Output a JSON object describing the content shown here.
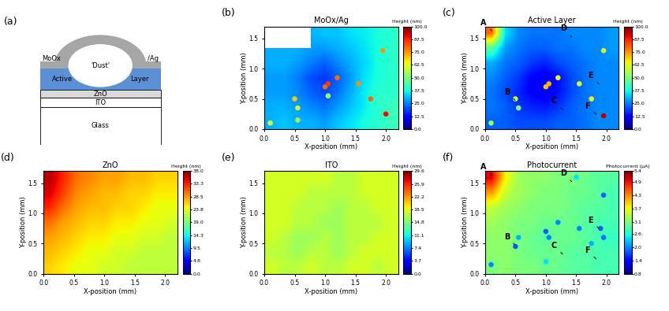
{
  "schematic": {
    "panel_label": "(a)",
    "layers": {
      "top_left": "MoOx",
      "top_right": "/Ag",
      "active_left": "Active",
      "active_right": "Layer",
      "dust": "'Dust'",
      "znO": "ZnO",
      "ito": "ITO",
      "glass": "Glass"
    }
  },
  "chart_data": [
    {
      "type": "heatmap",
      "panel_label": "(b)",
      "title": "MoOx/Ag",
      "x_label": "X-position (mm)",
      "y_label": "Y-position (mm)",
      "xlim": [
        0,
        2.2
      ],
      "ylim": [
        0,
        1.7
      ],
      "xticks": [
        0.0,
        0.5,
        1.0,
        1.5,
        2.0
      ],
      "yticks": [
        0.0,
        0.5,
        1.0,
        1.5
      ],
      "colorbar_label": "Height (nm)",
      "colorbar_range": [
        0.0,
        100.0
      ],
      "colorbar_ticks": [
        0.0,
        12.5,
        25.0,
        37.5,
        50.0,
        62.5,
        75.0,
        87.5,
        100.0
      ],
      "cells": [
        [
          30,
          32,
          30,
          30,
          28,
          32,
          35,
          38,
          40,
          42
        ],
        [
          30,
          30,
          28,
          26,
          24,
          28,
          32,
          36,
          40,
          42
        ],
        [
          28,
          28,
          26,
          22,
          20,
          24,
          30,
          36,
          40,
          40
        ],
        [
          28,
          28,
          25,
          20,
          18,
          22,
          28,
          35,
          38,
          40
        ],
        [
          30,
          30,
          28,
          25,
          22,
          26,
          30,
          34,
          38,
          40
        ],
        [
          30,
          30,
          30,
          28,
          28,
          30,
          32,
          35,
          38,
          40
        ],
        [
          null,
          null,
          null,
          30,
          32,
          32,
          35,
          36,
          38,
          40
        ]
      ],
      "spots": [
        {
          "x": 0.1,
          "y": 0.1,
          "value": 62
        },
        {
          "x": 0.5,
          "y": 0.5,
          "value": 70
        },
        {
          "x": 0.55,
          "y": 0.35,
          "value": 60
        },
        {
          "x": 0.55,
          "y": 0.15,
          "value": 55
        },
        {
          "x": 1.0,
          "y": 0.7,
          "value": 80
        },
        {
          "x": 1.05,
          "y": 0.75,
          "value": 85
        },
        {
          "x": 1.2,
          "y": 0.85,
          "value": 80
        },
        {
          "x": 1.05,
          "y": 0.55,
          "value": 55
        },
        {
          "x": 1.55,
          "y": 0.75,
          "value": 75
        },
        {
          "x": 1.75,
          "y": 0.5,
          "value": 80
        },
        {
          "x": 1.95,
          "y": 1.3,
          "value": 75
        },
        {
          "x": 2.0,
          "y": 0.25,
          "value": 90
        }
      ]
    },
    {
      "type": "heatmap",
      "panel_label": "(c)",
      "title": "Active Layer",
      "x_label": "X-position (mm)",
      "y_label": "Y-position (mm)",
      "xlim": [
        0,
        2.2
      ],
      "ylim": [
        0,
        1.7
      ],
      "xticks": [
        0.0,
        0.5,
        1.0,
        1.5,
        2.0
      ],
      "yticks": [
        0.0,
        0.5,
        1.0,
        1.5
      ],
      "colorbar_label": "Height (nm)",
      "colorbar_range": [
        0.0,
        100.0
      ],
      "colorbar_ticks": [
        0.0,
        12.5,
        25.0,
        37.5,
        50.0,
        62.5,
        75.0,
        87.5,
        100.0
      ],
      "cells": [
        [
          22,
          22,
          20,
          20,
          20,
          22,
          22,
          24,
          26,
          26
        ],
        [
          24,
          22,
          18,
          16,
          15,
          18,
          22,
          24,
          26,
          26
        ],
        [
          24,
          20,
          16,
          12,
          10,
          14,
          20,
          24,
          26,
          26
        ],
        [
          26,
          22,
          18,
          12,
          10,
          14,
          20,
          24,
          26,
          26
        ],
        [
          30,
          24,
          22,
          18,
          16,
          20,
          22,
          24,
          26,
          26
        ],
        [
          45,
          28,
          24,
          22,
          22,
          24,
          24,
          26,
          26,
          28
        ],
        [
          80,
          35,
          26,
          24,
          24,
          24,
          26,
          26,
          26,
          28
        ]
      ],
      "spots": [
        {
          "x": 0.1,
          "y": 0.1,
          "value": 55
        },
        {
          "x": 0.5,
          "y": 0.5,
          "value": 60
        },
        {
          "x": 0.55,
          "y": 0.35,
          "value": 50
        },
        {
          "x": 1.0,
          "y": 0.7,
          "value": 70
        },
        {
          "x": 1.05,
          "y": 0.75,
          "value": 72
        },
        {
          "x": 1.2,
          "y": 0.85,
          "value": 65
        },
        {
          "x": 1.55,
          "y": 0.75,
          "value": 62
        },
        {
          "x": 1.75,
          "y": 0.5,
          "value": 65
        },
        {
          "x": 1.95,
          "y": 1.3,
          "value": 62
        },
        {
          "x": 1.95,
          "y": 0.22,
          "value": 95
        }
      ],
      "annotations": [
        {
          "text": "A",
          "x": 0.14,
          "y": 1.6
        },
        {
          "text": "B",
          "x": 0.52,
          "y": 0.45
        },
        {
          "text": "C",
          "x": 1.3,
          "y": 0.3
        },
        {
          "text": "D",
          "x": 1.45,
          "y": 1.5
        },
        {
          "text": "E",
          "x": 1.9,
          "y": 0.72
        },
        {
          "text": "F",
          "x": 1.85,
          "y": 0.22
        }
      ]
    },
    {
      "type": "heatmap",
      "panel_label": "(d)",
      "title": "ZnO",
      "x_label": "X-position (mm)",
      "y_label": "Y-position (mm)",
      "xlim": [
        0,
        2.2
      ],
      "ylim": [
        0,
        1.7
      ],
      "xticks": [
        0.0,
        0.5,
        1.0,
        1.5,
        2.0
      ],
      "yticks": [
        0.0,
        0.5,
        1.0,
        1.5
      ],
      "colorbar_label": "Height (nm)",
      "colorbar_range": [
        0.0,
        38.0
      ],
      "colorbar_ticks": [
        0.0,
        4.8,
        9.5,
        14.3,
        19.0,
        23.8,
        28.5,
        33.3,
        38.0
      ],
      "cells": [
        [
          26,
          25,
          24,
          24,
          23,
          23,
          22,
          22,
          22,
          22
        ],
        [
          27,
          26,
          25,
          24,
          24,
          23,
          23,
          22,
          22,
          22
        ],
        [
          28,
          27,
          26,
          25,
          25,
          24,
          24,
          23,
          23,
          22
        ],
        [
          30,
          28,
          27,
          26,
          26,
          25,
          25,
          24,
          24,
          23
        ],
        [
          33,
          30,
          28,
          27,
          27,
          26,
          26,
          25,
          24,
          24
        ],
        [
          35,
          32,
          29,
          28,
          27,
          27,
          26,
          26,
          25,
          25
        ],
        [
          36,
          33,
          30,
          29,
          28,
          28,
          27,
          27,
          26,
          26
        ]
      ],
      "spots": []
    },
    {
      "type": "heatmap",
      "panel_label": "(e)",
      "title": "ITO",
      "x_label": "X-position (mm)",
      "y_label": "Y-position (mm)",
      "xlim": [
        0,
        2.2
      ],
      "ylim": [
        0,
        1.7
      ],
      "xticks": [
        0.0,
        0.5,
        1.0,
        1.5,
        2.0
      ],
      "yticks": [
        0.0,
        0.5,
        1.0,
        1.5
      ],
      "colorbar_label": "Height (nm)",
      "colorbar_range": [
        0.0,
        29.6
      ],
      "colorbar_ticks": [
        0.0,
        3.7,
        7.4,
        11.1,
        14.8,
        18.5,
        22.2,
        25.9,
        29.6
      ],
      "cells": [
        [
          18,
          17,
          17,
          18,
          17,
          17,
          18,
          18,
          17,
          18
        ],
        [
          17,
          17,
          16,
          17,
          17,
          16,
          17,
          18,
          18,
          18
        ],
        [
          18,
          17,
          16,
          16,
          17,
          16,
          17,
          17,
          18,
          18
        ],
        [
          18,
          18,
          17,
          17,
          16,
          16,
          17,
          17,
          17,
          18
        ],
        [
          18,
          18,
          17,
          17,
          17,
          16,
          17,
          17,
          18,
          18
        ],
        [
          18,
          18,
          18,
          17,
          17,
          17,
          17,
          18,
          18,
          18
        ],
        [
          18,
          18,
          18,
          18,
          18,
          17,
          17,
          18,
          18,
          18
        ]
      ],
      "spots": []
    },
    {
      "type": "heatmap",
      "panel_label": "(f)",
      "title": "Photocurrent",
      "x_label": "X-position (mm)",
      "y_label": "Y-position (mm)",
      "xlim": [
        0,
        2.2
      ],
      "ylim": [
        0,
        1.7
      ],
      "xticks": [
        0.0,
        0.5,
        1.0,
        1.5,
        2.0
      ],
      "yticks": [
        0.0,
        0.5,
        1.0,
        1.5
      ],
      "colorbar_label": "Photocurrent (μA)",
      "colorbar_range": [
        0.8,
        5.4
      ],
      "colorbar_ticks": [
        0.8,
        1.4,
        2.0,
        2.6,
        3.1,
        3.7,
        4.3,
        4.9,
        5.4
      ],
      "cells": [
        [
          3.1,
          3.2,
          3.1,
          3.1,
          3.0,
          3.0,
          2.9,
          2.9,
          2.8,
          2.8
        ],
        [
          3.2,
          3.2,
          3.1,
          3.0,
          3.0,
          3.0,
          2.9,
          2.9,
          2.8,
          2.8
        ],
        [
          3.2,
          3.2,
          3.1,
          3.0,
          2.9,
          3.0,
          3.0,
          2.9,
          2.8,
          2.7
        ],
        [
          3.3,
          3.2,
          3.1,
          3.1,
          3.0,
          3.0,
          3.0,
          2.9,
          2.8,
          2.8
        ],
        [
          3.5,
          3.3,
          3.2,
          3.1,
          3.1,
          3.1,
          3.0,
          2.9,
          2.9,
          2.8
        ],
        [
          4.2,
          3.5,
          3.3,
          3.2,
          3.1,
          3.1,
          3.0,
          3.0,
          2.9,
          2.8
        ],
        [
          5.0,
          3.8,
          3.3,
          3.2,
          3.2,
          3.1,
          3.1,
          3.0,
          2.9,
          2.9
        ]
      ],
      "spots": [
        {
          "x": 0.1,
          "y": 0.15,
          "value": 2.0
        },
        {
          "x": 0.5,
          "y": 0.45,
          "value": 1.8
        },
        {
          "x": 0.55,
          "y": 0.6,
          "value": 2.2
        },
        {
          "x": 1.0,
          "y": 0.7,
          "value": 1.8
        },
        {
          "x": 1.05,
          "y": 0.6,
          "value": 2.0
        },
        {
          "x": 1.2,
          "y": 0.85,
          "value": 2.0
        },
        {
          "x": 1.55,
          "y": 0.75,
          "value": 2.0
        },
        {
          "x": 1.75,
          "y": 0.5,
          "value": 2.2
        },
        {
          "x": 1.9,
          "y": 0.75,
          "value": 1.8
        },
        {
          "x": 1.95,
          "y": 1.3,
          "value": 1.8
        },
        {
          "x": 1.95,
          "y": 0.6,
          "value": 1.9
        },
        {
          "x": 1.5,
          "y": 1.6,
          "value": 2.4
        },
        {
          "x": 1.0,
          "y": 0.2,
          "value": 2.4
        }
      ],
      "annotations": [
        {
          "text": "A",
          "x": 0.14,
          "y": 1.6
        },
        {
          "text": "B",
          "x": 0.52,
          "y": 0.45
        },
        {
          "text": "C",
          "x": 1.3,
          "y": 0.3
        },
        {
          "text": "D",
          "x": 1.45,
          "y": 1.5
        },
        {
          "text": "E",
          "x": 1.9,
          "y": 0.72
        },
        {
          "text": "F",
          "x": 1.85,
          "y": 0.22
        }
      ]
    }
  ]
}
